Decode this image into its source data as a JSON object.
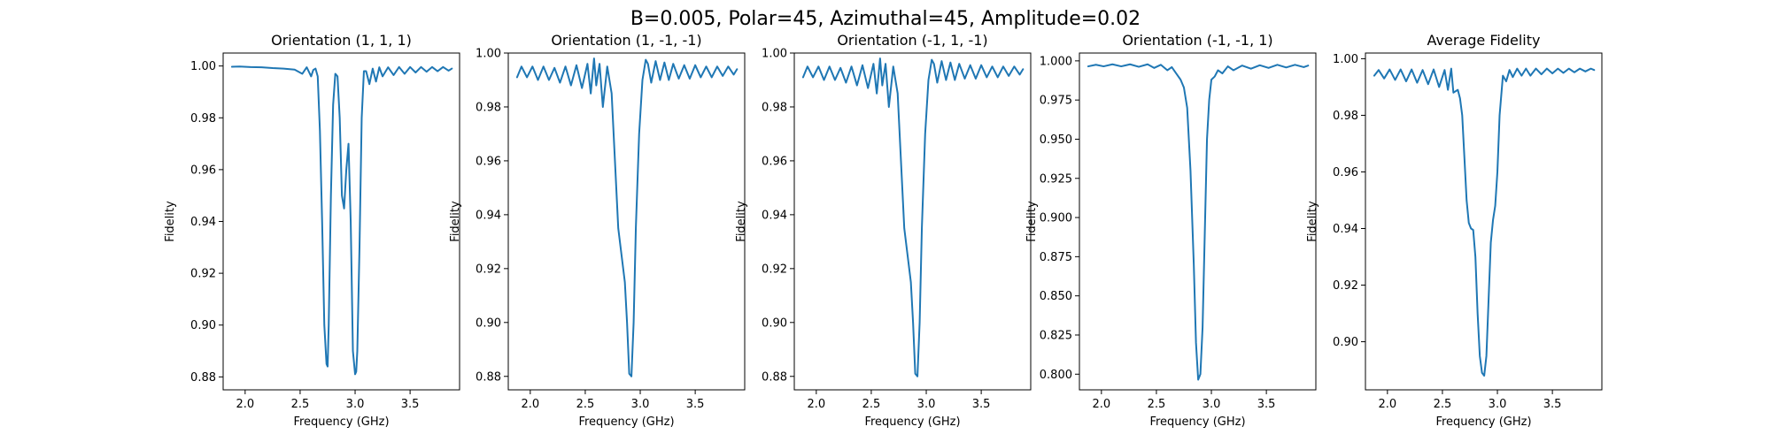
{
  "figure": {
    "suptitle": "B=0.005, Polar=45, Azimuthal=45, Amplitude=0.02"
  },
  "colors": {
    "line": "#1f77b4",
    "axes": "#000000",
    "background": "#ffffff"
  },
  "chart_data": [
    {
      "type": "line",
      "title": "Orientation (1, 1, 1)",
      "xlabel": "Frequency (GHz)",
      "ylabel": "Fidelity",
      "xlim": [
        1.8,
        3.95
      ],
      "ylim": [
        0.875,
        1.005
      ],
      "xticks": [
        2.0,
        2.5,
        3.0,
        3.5
      ],
      "yticks": [
        0.88,
        0.9,
        0.92,
        0.94,
        0.96,
        0.98,
        1.0
      ],
      "series": [
        {
          "x": [
            1.88,
            1.95,
            2.05,
            2.15,
            2.25,
            2.35,
            2.45,
            2.52,
            2.56,
            2.6,
            2.62,
            2.64,
            2.66,
            2.68,
            2.7,
            2.72,
            2.74,
            2.75,
            2.76,
            2.78,
            2.8,
            2.82,
            2.84,
            2.86,
            2.88,
            2.9,
            2.92,
            2.94,
            2.96,
            2.98,
            3.0,
            3.01,
            3.02,
            3.04,
            3.06,
            3.08,
            3.1,
            3.13,
            3.16,
            3.19,
            3.22,
            3.25,
            3.3,
            3.35,
            3.4,
            3.45,
            3.5,
            3.55,
            3.6,
            3.65,
            3.7,
            3.75,
            3.8,
            3.85,
            3.88
          ],
          "y": [
            0.9997,
            0.9998,
            0.9996,
            0.9995,
            0.9992,
            0.999,
            0.9986,
            0.997,
            0.9995,
            0.996,
            0.9985,
            0.999,
            0.996,
            0.975,
            0.94,
            0.9,
            0.885,
            0.884,
            0.9,
            0.95,
            0.985,
            0.997,
            0.996,
            0.98,
            0.95,
            0.945,
            0.96,
            0.97,
            0.94,
            0.89,
            0.881,
            0.882,
            0.89,
            0.93,
            0.98,
            0.998,
            0.998,
            0.993,
            0.999,
            0.994,
            0.9995,
            0.996,
            0.9995,
            0.9965,
            0.9996,
            0.997,
            0.9996,
            0.9975,
            0.9996,
            0.9978,
            0.9996,
            0.998,
            0.9996,
            0.9982,
            0.999
          ]
        }
      ]
    },
    {
      "type": "line",
      "title": "Orientation (1, -1, -1)",
      "xlabel": "Frequency (GHz)",
      "ylabel": "Fidelity",
      "xlim": [
        1.8,
        3.95
      ],
      "ylim": [
        0.875,
        1.0
      ],
      "xticks": [
        2.0,
        2.5,
        3.0,
        3.5
      ],
      "yticks": [
        0.88,
        0.9,
        0.92,
        0.94,
        0.96,
        0.98,
        1.0
      ],
      "series": [
        {
          "x": [
            1.88,
            1.92,
            1.97,
            2.02,
            2.07,
            2.12,
            2.17,
            2.22,
            2.27,
            2.32,
            2.37,
            2.42,
            2.47,
            2.52,
            2.55,
            2.58,
            2.6,
            2.63,
            2.66,
            2.7,
            2.74,
            2.77,
            2.8,
            2.83,
            2.86,
            2.88,
            2.9,
            2.92,
            2.94,
            2.96,
            2.99,
            3.02,
            3.05,
            3.07,
            3.1,
            3.14,
            3.18,
            3.22,
            3.26,
            3.3,
            3.35,
            3.4,
            3.45,
            3.5,
            3.55,
            3.6,
            3.65,
            3.7,
            3.75,
            3.8,
            3.85,
            3.88
          ],
          "y": [
            0.991,
            0.995,
            0.991,
            0.995,
            0.99,
            0.995,
            0.99,
            0.9945,
            0.989,
            0.995,
            0.988,
            0.9955,
            0.987,
            0.996,
            0.985,
            0.998,
            0.988,
            0.996,
            0.98,
            0.995,
            0.985,
            0.96,
            0.935,
            0.925,
            0.915,
            0.9,
            0.881,
            0.88,
            0.9,
            0.935,
            0.97,
            0.99,
            0.9975,
            0.996,
            0.989,
            0.997,
            0.99,
            0.9965,
            0.99,
            0.996,
            0.9905,
            0.9955,
            0.9905,
            0.9955,
            0.991,
            0.995,
            0.991,
            0.995,
            0.9915,
            0.995,
            0.992,
            0.994
          ]
        }
      ]
    },
    {
      "type": "line",
      "title": "Orientation (-1, 1, -1)",
      "xlabel": "Frequency (GHz)",
      "ylabel": "Fidelity",
      "xlim": [
        1.8,
        3.95
      ],
      "ylim": [
        0.875,
        1.0
      ],
      "xticks": [
        2.0,
        2.5,
        3.0,
        3.5
      ],
      "yticks": [
        0.88,
        0.9,
        0.92,
        0.94,
        0.96,
        0.98,
        1.0
      ],
      "series": [
        {
          "x": [
            1.88,
            1.92,
            1.97,
            2.02,
            2.07,
            2.12,
            2.17,
            2.22,
            2.27,
            2.32,
            2.37,
            2.42,
            2.47,
            2.52,
            2.55,
            2.58,
            2.6,
            2.63,
            2.66,
            2.7,
            2.74,
            2.77,
            2.8,
            2.83,
            2.86,
            2.88,
            2.9,
            2.92,
            2.94,
            2.96,
            2.99,
            3.02,
            3.05,
            3.07,
            3.1,
            3.14,
            3.18,
            3.22,
            3.26,
            3.3,
            3.35,
            3.4,
            3.45,
            3.5,
            3.55,
            3.6,
            3.65,
            3.7,
            3.75,
            3.8,
            3.85,
            3.88
          ],
          "y": [
            0.991,
            0.995,
            0.991,
            0.995,
            0.99,
            0.995,
            0.99,
            0.9945,
            0.989,
            0.995,
            0.988,
            0.9955,
            0.987,
            0.996,
            0.985,
            0.998,
            0.988,
            0.996,
            0.98,
            0.995,
            0.985,
            0.96,
            0.935,
            0.925,
            0.915,
            0.9,
            0.881,
            0.88,
            0.9,
            0.935,
            0.97,
            0.99,
            0.9975,
            0.996,
            0.989,
            0.997,
            0.99,
            0.9965,
            0.99,
            0.996,
            0.9905,
            0.9955,
            0.9905,
            0.9955,
            0.991,
            0.995,
            0.991,
            0.995,
            0.9915,
            0.995,
            0.992,
            0.994
          ]
        }
      ]
    },
    {
      "type": "line",
      "title": "Orientation (-1, -1, 1)",
      "xlabel": "Frequency (GHz)",
      "ylabel": "Fidelity",
      "xlim": [
        1.8,
        3.95
      ],
      "ylim": [
        0.79,
        1.005
      ],
      "xticks": [
        2.0,
        2.5,
        3.0,
        3.5
      ],
      "yticks": [
        0.8,
        0.825,
        0.85,
        0.875,
        0.9,
        0.925,
        0.95,
        0.975,
        1.0
      ],
      "series": [
        {
          "x": [
            1.88,
            1.95,
            2.02,
            2.1,
            2.18,
            2.26,
            2.34,
            2.42,
            2.48,
            2.54,
            2.6,
            2.64,
            2.68,
            2.72,
            2.75,
            2.78,
            2.81,
            2.84,
            2.86,
            2.88,
            2.9,
            2.92,
            2.94,
            2.96,
            2.98,
            3.0,
            3.03,
            3.06,
            3.1,
            3.15,
            3.2,
            3.28,
            3.36,
            3.44,
            3.52,
            3.6,
            3.68,
            3.76,
            3.84,
            3.88
          ],
          "y": [
            0.9965,
            0.9975,
            0.9965,
            0.9978,
            0.9965,
            0.9978,
            0.9962,
            0.9978,
            0.9955,
            0.9975,
            0.994,
            0.996,
            0.992,
            0.988,
            0.983,
            0.97,
            0.93,
            0.87,
            0.82,
            0.7965,
            0.8,
            0.83,
            0.89,
            0.95,
            0.975,
            0.988,
            0.99,
            0.994,
            0.992,
            0.9965,
            0.994,
            0.997,
            0.995,
            0.9972,
            0.9955,
            0.9975,
            0.9958,
            0.9975,
            0.996,
            0.997
          ]
        }
      ]
    },
    {
      "type": "line",
      "title": "Average Fidelity",
      "xlabel": "Frequency (GHz)",
      "ylabel": "Fidelity",
      "xlim": [
        1.8,
        3.95
      ],
      "ylim": [
        0.883,
        1.002
      ],
      "xticks": [
        2.0,
        2.5,
        3.0,
        3.5
      ],
      "yticks": [
        0.9,
        0.92,
        0.94,
        0.96,
        0.98,
        1.0
      ],
      "series": [
        {
          "x": [
            1.88,
            1.92,
            1.97,
            2.02,
            2.07,
            2.12,
            2.17,
            2.22,
            2.27,
            2.32,
            2.37,
            2.42,
            2.47,
            2.52,
            2.55,
            2.58,
            2.6,
            2.62,
            2.64,
            2.66,
            2.68,
            2.7,
            2.72,
            2.74,
            2.76,
            2.78,
            2.8,
            2.82,
            2.84,
            2.86,
            2.88,
            2.9,
            2.92,
            2.94,
            2.96,
            2.98,
            3.0,
            3.02,
            3.05,
            3.08,
            3.11,
            3.14,
            3.18,
            3.22,
            3.26,
            3.3,
            3.35,
            3.4,
            3.45,
            3.5,
            3.55,
            3.6,
            3.65,
            3.7,
            3.75,
            3.8,
            3.85,
            3.88
          ],
          "y": [
            0.994,
            0.996,
            0.993,
            0.9962,
            0.9925,
            0.9962,
            0.992,
            0.9962,
            0.9915,
            0.996,
            0.991,
            0.9962,
            0.99,
            0.996,
            0.989,
            0.9965,
            0.988,
            0.9885,
            0.989,
            0.986,
            0.98,
            0.965,
            0.95,
            0.942,
            0.94,
            0.9395,
            0.93,
            0.91,
            0.895,
            0.889,
            0.888,
            0.895,
            0.915,
            0.935,
            0.943,
            0.948,
            0.96,
            0.98,
            0.994,
            0.992,
            0.996,
            0.9935,
            0.9965,
            0.994,
            0.9965,
            0.994,
            0.9965,
            0.9945,
            0.9965,
            0.9948,
            0.9965,
            0.995,
            0.9965,
            0.9952,
            0.9965,
            0.9955,
            0.9965,
            0.996
          ]
        }
      ]
    }
  ]
}
